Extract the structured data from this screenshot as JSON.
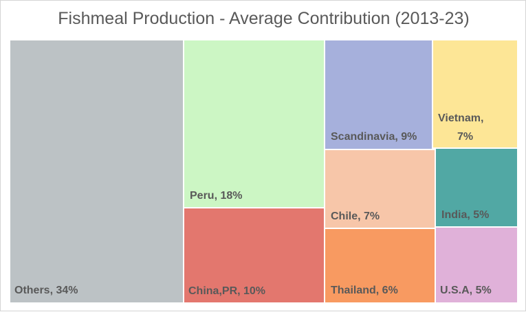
{
  "chart_data": {
    "type": "treemap",
    "title": "Fishmeal Production - Average Contribution (2013-23)",
    "categories": [
      "Others",
      "Peru",
      "China,PR",
      "Scandinavia",
      "Chile",
      "Thailand",
      "Vietnam",
      "India",
      "U.S.A"
    ],
    "values": [
      34,
      18,
      10,
      9,
      7,
      6,
      7,
      5,
      5
    ],
    "labels": [
      "Others, 34%",
      "Peru, 18%",
      "China,PR, 10%",
      "Scandinavia, 9%",
      "Chile, 7%",
      "Thailand, 6%",
      "Vietnam,",
      "India, 5%",
      "U.S.A, 5%"
    ],
    "label_extra": {
      "Vietnam": "7%"
    },
    "colors": [
      "#bcc2c5",
      "#ccf6c4",
      "#e3776e",
      "#a6b0dc",
      "#f7c6a9",
      "#f89a61",
      "#fde696",
      "#51a8a4",
      "#e0b1d9"
    ]
  }
}
